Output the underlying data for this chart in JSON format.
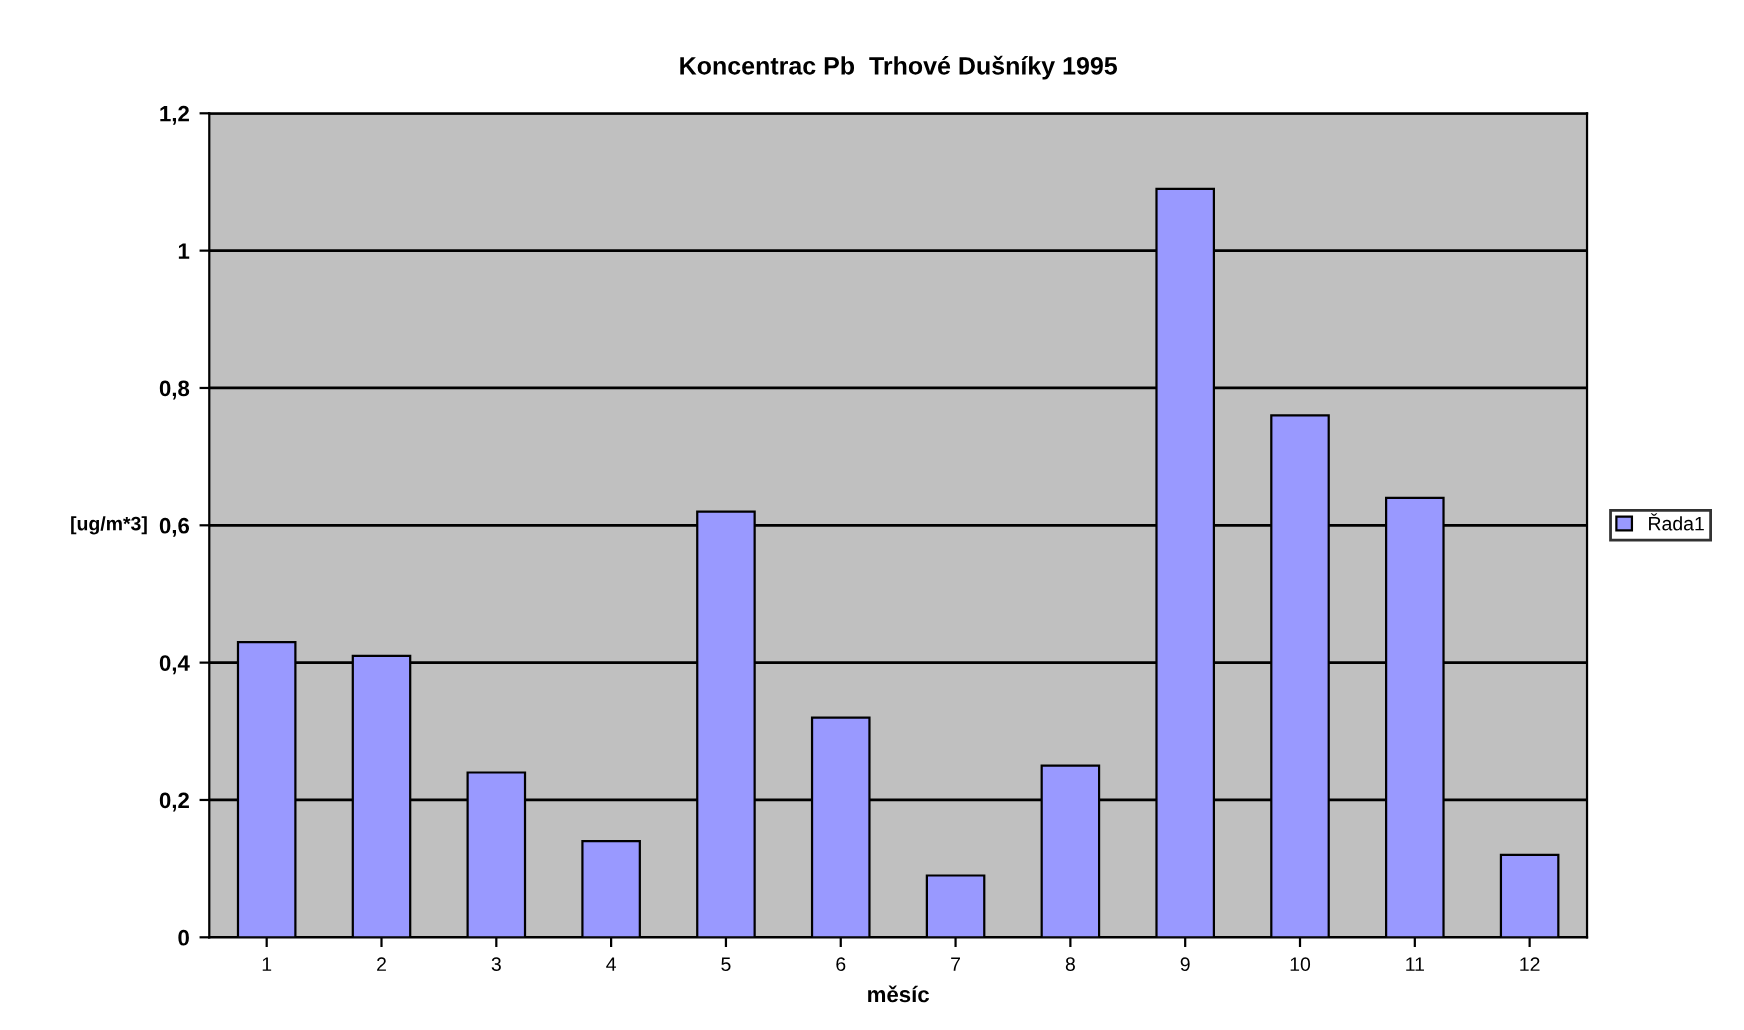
{
  "chart_data": {
    "type": "bar",
    "title": "Koncentrac Pb  Trhové Dušníky 1995",
    "xlabel": "měsíc",
    "ylabel": "[ug/m*3]",
    "categories": [
      "1",
      "2",
      "3",
      "4",
      "5",
      "6",
      "7",
      "8",
      "9",
      "10",
      "11",
      "12"
    ],
    "series": [
      {
        "name": "Řada1",
        "color": "#9999ff",
        "values": [
          0.43,
          0.41,
          0.24,
          0.14,
          0.62,
          0.32,
          0.09,
          0.25,
          1.09,
          0.76,
          0.64,
          0.12
        ]
      }
    ],
    "ylim": [
      0,
      1.2
    ],
    "yticks": [
      0,
      {
        "value": 0.2,
        "label": "0,2"
      },
      {
        "value": 0.4,
        "label": "0,4"
      },
      {
        "value": 0.6,
        "label": "0,6"
      },
      {
        "value": 0.8,
        "label": "0,8"
      },
      1,
      {
        "value": 1.2,
        "label": "1,2"
      }
    ],
    "grid": "y",
    "legend": "right"
  }
}
